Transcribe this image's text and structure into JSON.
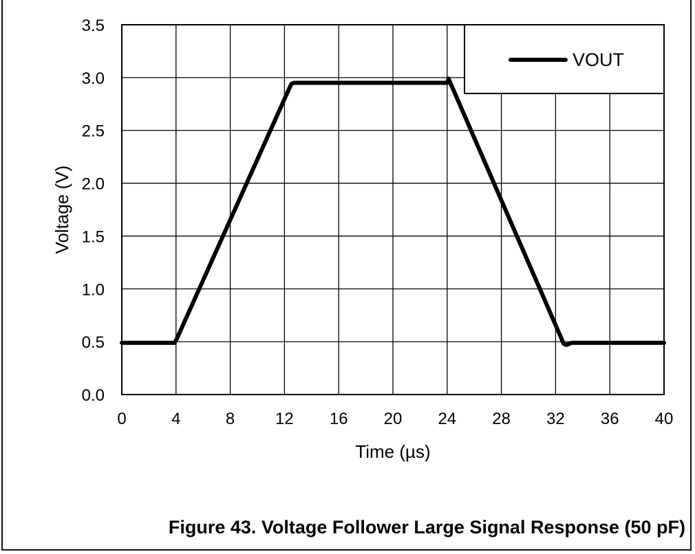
{
  "caption": "Figure 43. Voltage Follower Large Signal Response (50 pF)",
  "chart_data": {
    "type": "line",
    "title": "",
    "xlabel": "Time (µs)",
    "ylabel": "Voltage (V)",
    "xlim": [
      0,
      40
    ],
    "ylim": [
      0,
      3.5
    ],
    "x_ticks": [
      0,
      4,
      8,
      12,
      16,
      20,
      24,
      28,
      32,
      36,
      40
    ],
    "y_ticks": [
      0.0,
      0.5,
      1.0,
      1.5,
      2.0,
      2.5,
      3.0,
      3.5
    ],
    "y_tick_labels": [
      "0.0",
      "0.5",
      "1.0",
      "1.5",
      "2.0",
      "2.5",
      "3.0",
      "3.5"
    ],
    "grid": true,
    "legend_position": "top-right",
    "colors": {
      "line": "#000000",
      "grid": "#000000"
    },
    "series": [
      {
        "name": "VOUT",
        "x": [
          0,
          3.9,
          4.1,
          12.5,
          12.7,
          24.0,
          24.1,
          32.6,
          32.8,
          33.2,
          40
        ],
        "y": [
          0.49,
          0.49,
          0.54,
          2.94,
          2.95,
          2.95,
          2.99,
          0.48,
          0.47,
          0.49,
          0.49
        ]
      }
    ]
  }
}
